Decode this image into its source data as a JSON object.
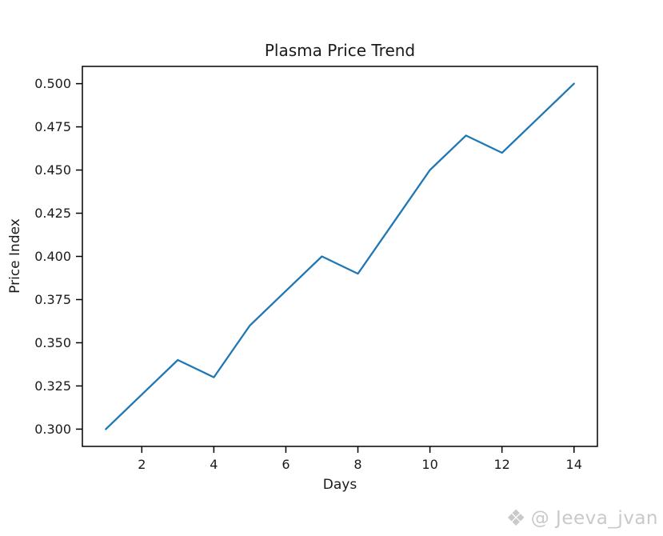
{
  "figure": {
    "background": "#ffffff"
  },
  "watermark": {
    "icon": "diamond-ornament-icon",
    "icon_glyph": "❖",
    "text": "@ Jeeva_jvan",
    "color": "#c9c9c9"
  },
  "chart_data": {
    "type": "line",
    "title": "Plasma Price Trend",
    "xlabel": "Days",
    "ylabel": "Price Index",
    "x": [
      1,
      2,
      3,
      4,
      5,
      6,
      7,
      8,
      9,
      10,
      11,
      12,
      13,
      14
    ],
    "series": [
      {
        "name": "Price Index",
        "color": "#1f77b4",
        "values": [
          0.3,
          0.32,
          0.34,
          0.33,
          0.36,
          0.38,
          0.4,
          0.39,
          0.42,
          0.45,
          0.47,
          0.46,
          0.48,
          0.5
        ]
      }
    ],
    "x_ticks": [
      2,
      4,
      6,
      8,
      10,
      12,
      14
    ],
    "x_tick_labels": [
      "2",
      "4",
      "6",
      "8",
      "10",
      "12",
      "14"
    ],
    "y_ticks": [
      0.3,
      0.325,
      0.35,
      0.375,
      0.4,
      0.425,
      0.45,
      0.475,
      0.5
    ],
    "y_tick_labels": [
      "0.300",
      "0.325",
      "0.350",
      "0.375",
      "0.400",
      "0.425",
      "0.450",
      "0.475",
      "0.500"
    ],
    "xlim": [
      0.35,
      14.65
    ],
    "ylim": [
      0.29,
      0.51
    ],
    "grid": false,
    "legend": "none",
    "axis_color": "#000000",
    "text_color": "#1a1a1a",
    "plot_background": "#ffffff"
  }
}
